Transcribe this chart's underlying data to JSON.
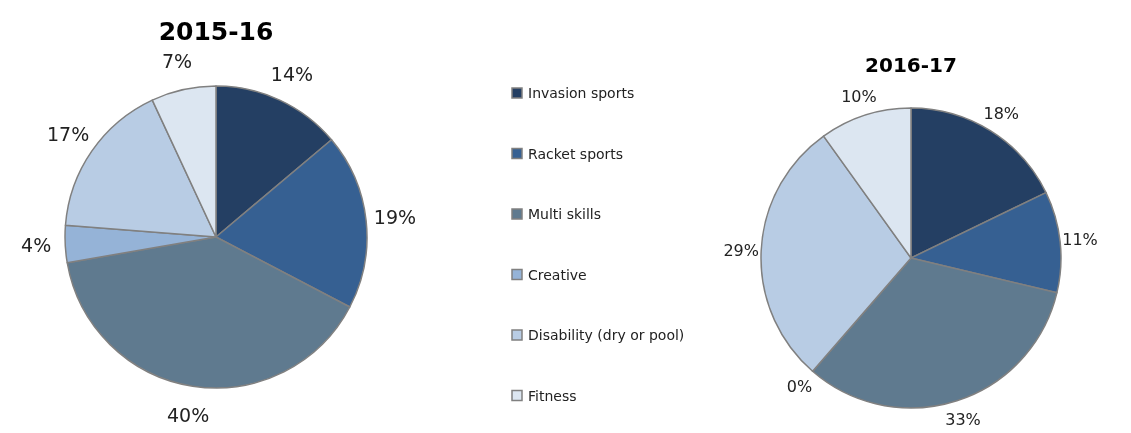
{
  "chart_data": [
    {
      "type": "pie",
      "title": "2015-16",
      "categories": [
        "Invasion sports",
        "Racket sports",
        "Multi skills",
        "Creative",
        "Disability (dry or pool)",
        "Fitness"
      ],
      "values": [
        14,
        19,
        40,
        4,
        17,
        7
      ],
      "value_labels": [
        "14%",
        "19%",
        "40%",
        "4%",
        "17%",
        "7%"
      ],
      "colors": [
        "#243f63",
        "#366092",
        "#5f7a8f",
        "#95b3d7",
        "#b8cce4",
        "#dce6f1"
      ],
      "data_labels": true,
      "legend": "right"
    },
    {
      "type": "pie",
      "title": "2016-17",
      "categories": [
        null,
        null,
        null,
        null,
        null,
        null
      ],
      "values": [
        18,
        11,
        33,
        0,
        29,
        10
      ],
      "value_labels": [
        "18%",
        "11%",
        "33%",
        "0%",
        "29%",
        "10%"
      ],
      "colors": [
        "#243f63",
        "#366092",
        "#5f7a8f",
        "#95b3d7",
        "#b8cce4",
        "#dce6f1"
      ],
      "data_labels": true
    }
  ]
}
